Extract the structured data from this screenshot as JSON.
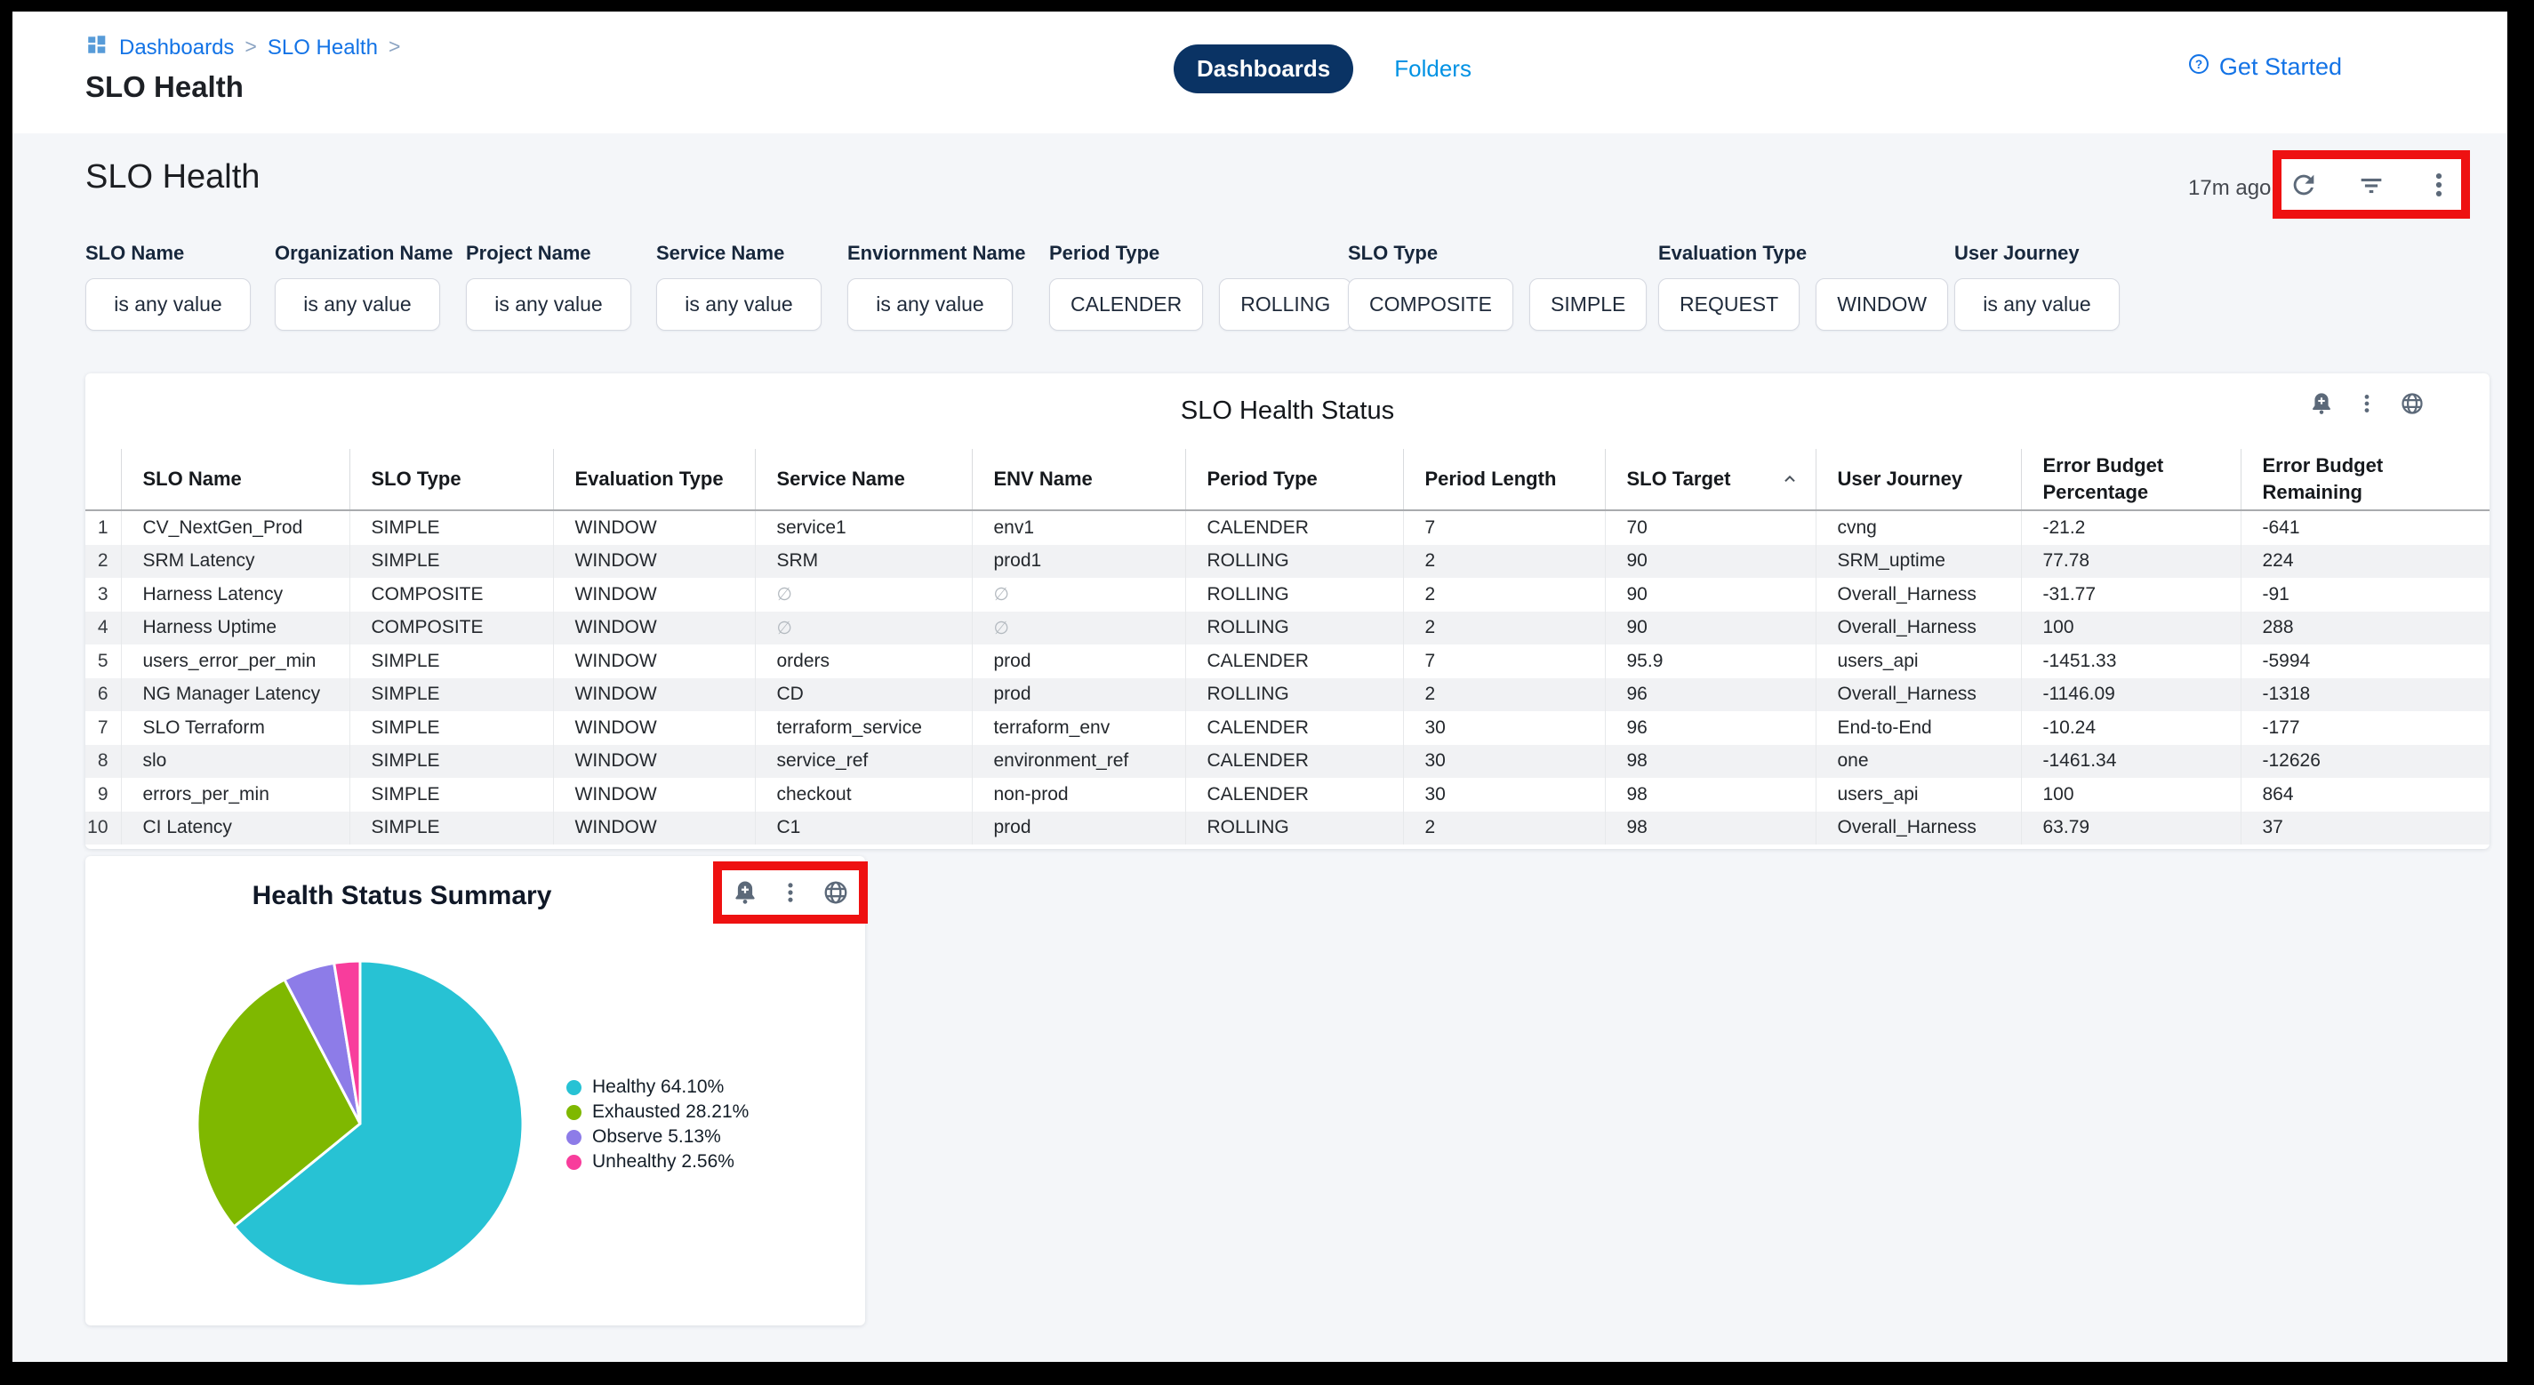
{
  "colors": {
    "accent_blue": "#1373e6",
    "folders_blue": "#0092e4",
    "navy_pill": "#0a3364",
    "annotation_red": "#ee1111",
    "page_bg": "#f4f6f9",
    "icon_gray": "#5c6979",
    "row_stripe": "#f1f2f4"
  },
  "topbar": {
    "breadcrumb": {
      "icon": "dashboards-grid-icon",
      "items": [
        "Dashboards",
        "SLO Health"
      ],
      "separator": ">"
    },
    "page_title": "SLO Health",
    "tabs": [
      {
        "label": "Dashboards",
        "active": true
      },
      {
        "label": "Folders",
        "active": false
      }
    ],
    "help": {
      "icon": "question-circle-icon",
      "label": "Get Started"
    }
  },
  "dashboard": {
    "heading": "SLO Health",
    "last_refreshed": "17m ago",
    "header_actions": [
      "refresh-icon",
      "filter-icon",
      "kebab-icon"
    ],
    "filters": [
      {
        "label": "SLO Name",
        "chips": [
          "is any value"
        ]
      },
      {
        "label": "Organization Name",
        "chips": [
          "is any value"
        ]
      },
      {
        "label": "Project Name",
        "chips": [
          "is any value"
        ]
      },
      {
        "label": "Service Name",
        "chips": [
          "is any value"
        ]
      },
      {
        "label": "Enviornment Name",
        "chips": [
          "is any value"
        ]
      },
      {
        "label": "Period Type",
        "chips": [
          "CALENDER",
          "ROLLING"
        ]
      },
      {
        "label": "SLO Type",
        "chips": [
          "COMPOSITE",
          "SIMPLE"
        ]
      },
      {
        "label": "Evaluation Type",
        "chips": [
          "REQUEST",
          "WINDOW"
        ]
      },
      {
        "label": "User Journey",
        "chips": [
          "is any value"
        ]
      }
    ]
  },
  "table_card": {
    "title": "SLO Health Status",
    "actions": [
      "bell-plus-icon",
      "kebab-icon",
      "globe-icon"
    ],
    "columns": [
      "SLO Name",
      "SLO Type",
      "Evaluation Type",
      "Service Name",
      "ENV Name",
      "Period Type",
      "Period Length",
      "SLO Target",
      "User Journey",
      "Error Budget\nPercentage",
      "Error Budget\nRemaining"
    ],
    "sort": {
      "column": "SLO Target",
      "direction": "asc"
    },
    "null_symbol": "∅",
    "rows": [
      [
        "1",
        "CV_NextGen_Prod",
        "SIMPLE",
        "WINDOW",
        "service1",
        "env1",
        "CALENDER",
        "7",
        "70",
        "cvng",
        "-21.2",
        "-641"
      ],
      [
        "2",
        "SRM Latency",
        "SIMPLE",
        "WINDOW",
        "SRM",
        "prod1",
        "ROLLING",
        "2",
        "90",
        "SRM_uptime",
        "77.78",
        "224"
      ],
      [
        "3",
        "Harness Latency",
        "COMPOSITE",
        "WINDOW",
        "∅",
        "∅",
        "ROLLING",
        "2",
        "90",
        "Overall_Harness",
        "-31.77",
        "-91"
      ],
      [
        "4",
        "Harness Uptime",
        "COMPOSITE",
        "WINDOW",
        "∅",
        "∅",
        "ROLLING",
        "2",
        "90",
        "Overall_Harness",
        "100",
        "288"
      ],
      [
        "5",
        "users_error_per_min",
        "SIMPLE",
        "WINDOW",
        "orders",
        "prod",
        "CALENDER",
        "7",
        "95.9",
        "users_api",
        "-1451.33",
        "-5994"
      ],
      [
        "6",
        "NG Manager Latency",
        "SIMPLE",
        "WINDOW",
        "CD",
        "prod",
        "ROLLING",
        "2",
        "96",
        "Overall_Harness",
        "-1146.09",
        "-1318"
      ],
      [
        "7",
        "SLO Terraform",
        "SIMPLE",
        "WINDOW",
        "terraform_service",
        "terraform_env",
        "CALENDER",
        "30",
        "96",
        "End-to-End",
        "-10.24",
        "-177"
      ],
      [
        "8",
        "slo",
        "SIMPLE",
        "WINDOW",
        "service_ref",
        "environment_ref",
        "CALENDER",
        "30",
        "98",
        "one",
        "-1461.34",
        "-12626"
      ],
      [
        "9",
        "errors_per_min",
        "SIMPLE",
        "WINDOW",
        "checkout",
        "non-prod",
        "CALENDER",
        "30",
        "98",
        "users_api",
        "100",
        "864"
      ],
      [
        "10",
        "CI Latency",
        "SIMPLE",
        "WINDOW",
        "C1",
        "prod",
        "ROLLING",
        "2",
        "98",
        "Overall_Harness",
        "63.79",
        "37"
      ]
    ]
  },
  "pie_card": {
    "title": "Health Status Summary",
    "actions": [
      "bell-plus-icon",
      "kebab-icon",
      "globe-icon"
    ]
  },
  "chart_data": {
    "type": "pie",
    "title": "Health Status Summary",
    "labels": [
      "Healthy",
      "Exhausted",
      "Observe",
      "Unhealthy"
    ],
    "values": [
      64.1,
      28.21,
      5.13,
      2.56
    ],
    "colors": [
      "#27c2d4",
      "#7fb800",
      "#8d7ce8",
      "#f83d9c"
    ],
    "legend": [
      "Healthy 64.10%",
      "Exhausted 28.21%",
      "Observe 5.13%",
      "Unhealthy 2.56%"
    ],
    "legend_position": "right",
    "start_angle": 0,
    "direction": "clockwise"
  }
}
